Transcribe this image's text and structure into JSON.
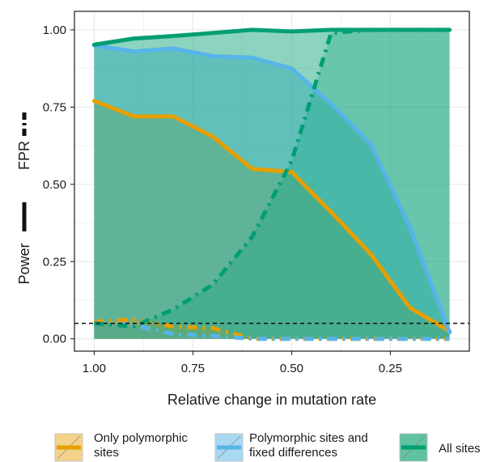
{
  "chart_data": {
    "type": "area",
    "xlabel": "Relative change in mutation rate",
    "ylabel_power": "Power",
    "ylabel_fpr": "FPR",
    "x": [
      1.0,
      0.9,
      0.8,
      0.7,
      0.6,
      0.5,
      0.4,
      0.3,
      0.2,
      0.1
    ],
    "xticks": [
      "1.00",
      "0.75",
      "0.50",
      "0.25"
    ],
    "xtick_values": [
      1.0,
      0.75,
      0.5,
      0.25
    ],
    "yticks": [
      "0.00",
      "0.25",
      "0.50",
      "0.75",
      "1.00"
    ],
    "ytick_values": [
      0,
      0.25,
      0.5,
      0.75,
      1.0
    ],
    "xlim": [
      1.05,
      0.05
    ],
    "ylim": [
      -0.04,
      1.06
    ],
    "x_reversed": true,
    "grid": true,
    "reference_line": 0.05,
    "legend_position": "bottom",
    "series": [
      {
        "name": "Only polymorphic sites",
        "legend_lines": [
          "Only polymorphic",
          "sites"
        ],
        "color": "#E69F00",
        "fill": "#F3D28A",
        "power": [
          0.77,
          0.72,
          0.72,
          0.655,
          0.55,
          0.54,
          0.41,
          0.275,
          0.1,
          0.025
        ],
        "fpr": [
          0.055,
          0.063,
          0.04,
          0.035,
          0.0,
          0.0,
          0.0,
          0.0,
          0.0,
          0.0
        ]
      },
      {
        "name": "Polymorphic sites and fixed differences",
        "legend_lines": [
          "Polymorphic sites and",
          "fixed differences"
        ],
        "color": "#56B4E9",
        "fill": "#A9D8F3",
        "power": [
          0.95,
          0.93,
          0.94,
          0.915,
          0.91,
          0.875,
          0.76,
          0.63,
          0.36,
          0.02
        ],
        "fpr": [
          0.05,
          0.045,
          0.015,
          0.01,
          0.0,
          0.0,
          0.0,
          0.0,
          0.0,
          0.0
        ]
      },
      {
        "name": "All sites",
        "legend_lines": [
          "All sites"
        ],
        "color": "#009E73",
        "fill": "#5FC2A1",
        "power": [
          0.952,
          0.972,
          0.98,
          0.99,
          1.0,
          0.995,
          1.0,
          1.0,
          1.0,
          1.0
        ],
        "fpr": [
          0.05,
          0.04,
          0.095,
          0.175,
          0.33,
          0.575,
          0.99,
          1.0,
          1.0,
          1.0
        ]
      }
    ]
  }
}
